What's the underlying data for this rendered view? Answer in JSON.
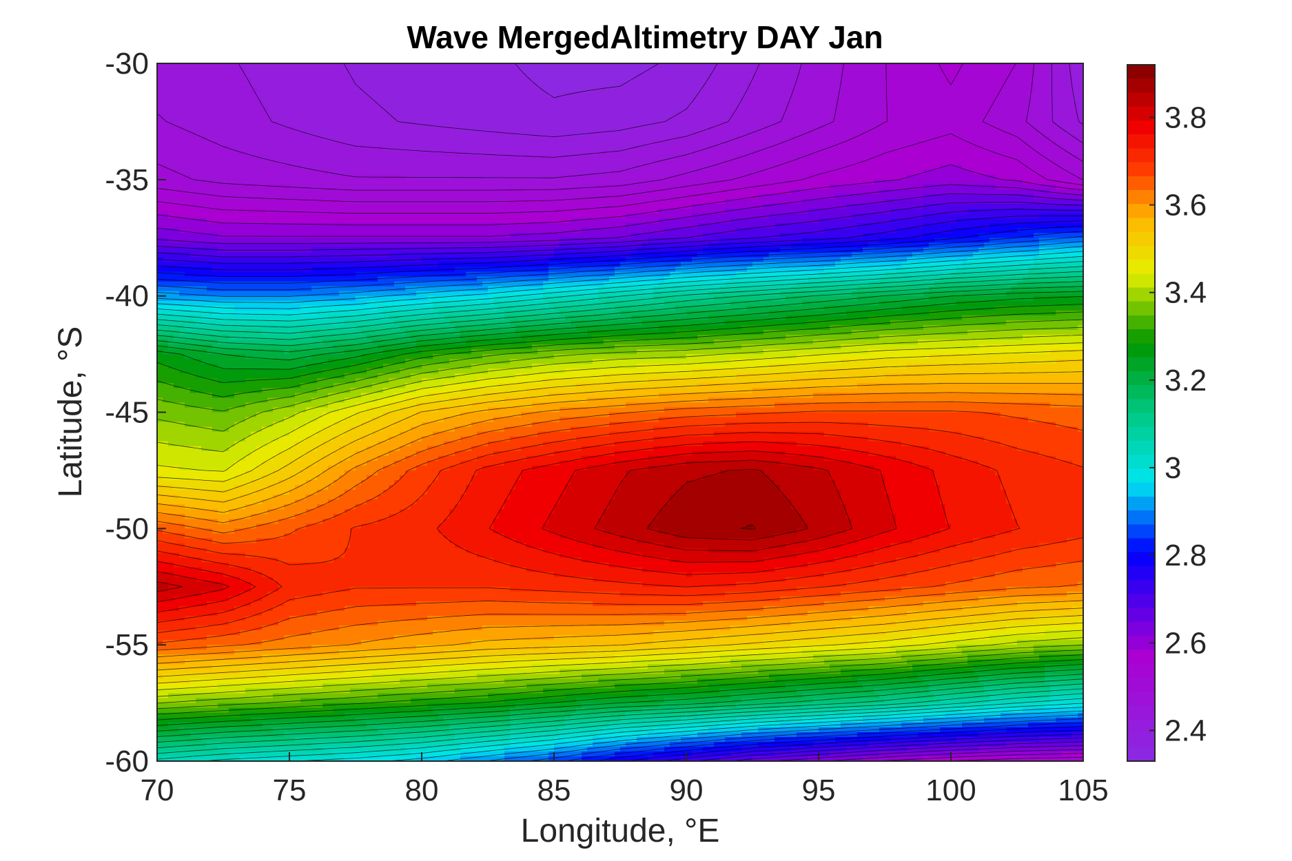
{
  "chart_data": {
    "type": "heatmap",
    "title": "Wave MergedAltimetry DAY Jan",
    "xlabel": "Longitude, °E",
    "ylabel": "Latitude, °S",
    "xlim": [
      70,
      105
    ],
    "ylim": [
      -60,
      -30
    ],
    "xticks": [
      "70",
      "75",
      "80",
      "85",
      "90",
      "95",
      "100",
      "105"
    ],
    "yticks": [
      "-30",
      "-35",
      "-40",
      "-45",
      "-50",
      "-55",
      "-60"
    ],
    "colorbar": {
      "range": [
        2.33,
        3.92
      ],
      "ticks": [
        "2.4",
        "2.6",
        "2.8",
        "3",
        "3.2",
        "3.4",
        "3.6",
        "3.8"
      ]
    },
    "contour_levels": 50,
    "x": [
      70,
      72.5,
      75,
      77.5,
      80,
      82.5,
      85,
      87.5,
      90,
      92.5,
      95,
      97.5,
      100,
      102.5,
      105
    ],
    "y": [
      -30,
      -32.5,
      -35,
      -37.5,
      -40,
      -42.5,
      -45,
      -47.5,
      -50,
      -52.5,
      -55,
      -57.5,
      -60
    ],
    "z": [
      [
        2.44,
        2.43,
        2.41,
        2.39,
        2.38,
        2.37,
        2.35,
        2.35,
        2.37,
        2.42,
        2.47,
        2.52,
        2.56,
        2.52,
        2.4
      ],
      [
        2.46,
        2.44,
        2.42,
        2.4,
        2.39,
        2.38,
        2.37,
        2.38,
        2.4,
        2.44,
        2.48,
        2.52,
        2.54,
        2.5,
        2.42
      ],
      [
        2.5,
        2.48,
        2.47,
        2.46,
        2.46,
        2.46,
        2.46,
        2.47,
        2.5,
        2.53,
        2.56,
        2.58,
        2.6,
        2.58,
        2.52
      ],
      [
        2.64,
        2.62,
        2.62,
        2.62,
        2.62,
        2.62,
        2.63,
        2.65,
        2.68,
        2.71,
        2.73,
        2.76,
        2.8,
        2.84,
        2.88
      ],
      [
        2.92,
        2.9,
        2.9,
        2.92,
        2.95,
        2.98,
        3.02,
        3.06,
        3.1,
        3.13,
        3.16,
        3.19,
        3.22,
        3.24,
        3.25
      ],
      [
        3.27,
        3.22,
        3.2,
        3.24,
        3.3,
        3.34,
        3.37,
        3.39,
        3.4,
        3.42,
        3.44,
        3.46,
        3.47,
        3.48,
        3.49
      ],
      [
        3.37,
        3.35,
        3.4,
        3.47,
        3.54,
        3.58,
        3.61,
        3.63,
        3.65,
        3.66,
        3.67,
        3.67,
        3.67,
        3.66,
        3.65
      ],
      [
        3.45,
        3.44,
        3.52,
        3.61,
        3.68,
        3.74,
        3.78,
        3.82,
        3.85,
        3.86,
        3.83,
        3.79,
        3.75,
        3.72,
        3.7
      ],
      [
        3.66,
        3.62,
        3.66,
        3.7,
        3.72,
        3.76,
        3.8,
        3.84,
        3.88,
        3.89,
        3.85,
        3.8,
        3.76,
        3.73,
        3.71
      ],
      [
        3.84,
        3.8,
        3.72,
        3.7,
        3.7,
        3.7,
        3.71,
        3.72,
        3.73,
        3.72,
        3.7,
        3.68,
        3.66,
        3.64,
        3.63
      ],
      [
        3.66,
        3.64,
        3.62,
        3.6,
        3.58,
        3.56,
        3.55,
        3.54,
        3.52,
        3.5,
        3.48,
        3.46,
        3.43,
        3.4,
        3.38
      ],
      [
        3.38,
        3.36,
        3.34,
        3.32,
        3.3,
        3.28,
        3.25,
        3.22,
        3.2,
        3.17,
        3.14,
        3.11,
        3.07,
        3.03,
        3.0
      ],
      [
        3.05,
        3.02,
        3.0,
        2.98,
        2.95,
        2.9,
        2.85,
        2.78,
        2.72,
        2.66,
        2.62,
        2.58,
        2.55,
        2.53,
        2.52
      ]
    ]
  }
}
